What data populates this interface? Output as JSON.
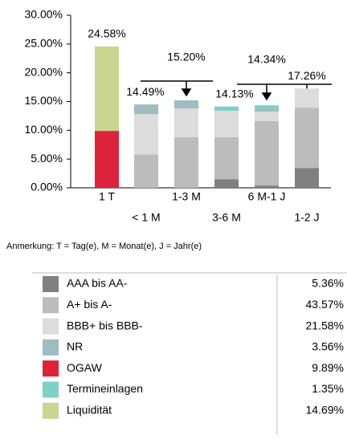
{
  "chart_data": {
    "type": "stacked_bar",
    "categories": [
      "1 T",
      "< 1 M",
      "1-3 M",
      "3-6 M",
      "6 M-1 J",
      "1-2 J"
    ],
    "series": [
      {
        "name": "AAA bis AA-",
        "color": "#808080",
        "values": [
          0,
          0,
          0,
          1.5,
          0.4,
          3.46
        ],
        "share": "5.36%"
      },
      {
        "name": "A+ bis A-",
        "color": "#bcbcbc",
        "values": [
          0,
          5.8,
          8.8,
          7.3,
          11.2,
          10.47
        ],
        "share": "43.57%"
      },
      {
        "name": "BBB+ bis BBB-",
        "color": "#dcdcdc",
        "values": [
          0,
          7.0,
          5.0,
          4.6,
          1.65,
          3.33
        ],
        "share": "21.58%"
      },
      {
        "name": "NR",
        "color": "#9fbcbe",
        "values": [
          0,
          1.69,
          1.4,
          0,
          0.47,
          0
        ],
        "share": "3.56%"
      },
      {
        "name": "OGAW",
        "color": "#dc2339",
        "values": [
          9.89,
          0,
          0,
          0,
          0,
          0
        ],
        "share": "9.89%"
      },
      {
        "name": "Termineinlagen",
        "color": "#7fd0c6",
        "values": [
          0,
          0,
          0,
          0.73,
          0.62,
          0
        ],
        "share": "1.35%"
      },
      {
        "name": "Liquidität",
        "color": "#cad690",
        "values": [
          14.69,
          0,
          0,
          0,
          0,
          0
        ],
        "share": "14.69%"
      }
    ],
    "totals": [
      24.58,
      14.49,
      15.2,
      14.13,
      14.34,
      17.26
    ],
    "total_labels": [
      "24.58%",
      "14.49%",
      "15.20%",
      "14.13%",
      "14.34%",
      "17.26%"
    ],
    "ylim": [
      0,
      30
    ],
    "yticks": [
      {
        "value": 0,
        "label": "0.00%"
      },
      {
        "value": 5,
        "label": "5.00%"
      },
      {
        "value": 10,
        "label": "10.00%"
      },
      {
        "value": 15,
        "label": "15.00%"
      },
      {
        "value": 20,
        "label": "20.00%"
      },
      {
        "value": 25,
        "label": "25.00%"
      },
      {
        "value": 30,
        "label": "30.00%"
      }
    ],
    "note": "Anmerkung: T = Tag(e), M = Monat(e), J = Jahr(e)"
  }
}
